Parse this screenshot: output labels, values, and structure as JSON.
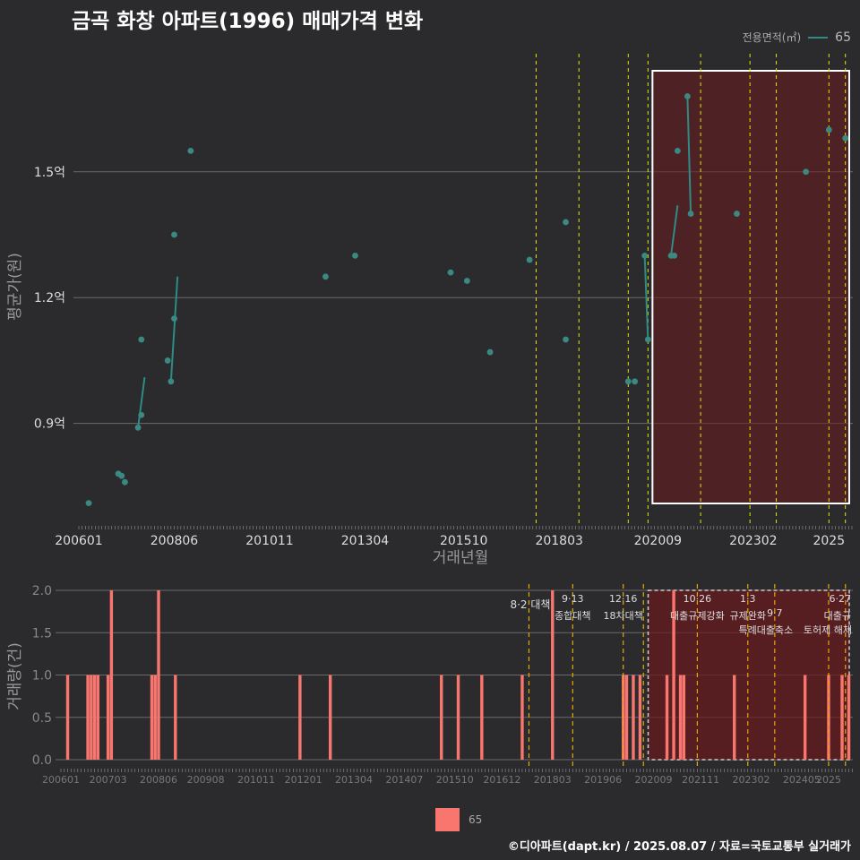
{
  "title": "금곡 화창 아파트(1996) 매매가격 변화",
  "legend": {
    "title": "전용면적(㎡)",
    "series_label": "65",
    "bar_label": "65"
  },
  "footer": "©디아파트(dapt.kr) / 2025.08.07 / 자료=국토교통부 실거래가",
  "colors": {
    "line": "#2e8b86",
    "point": "#3a8a83",
    "bar": "#f8766d",
    "vline_top": "#e6e600",
    "vline_bottom": "#e6a800",
    "shade": "#6b1a1e"
  },
  "chart_data": [
    {
      "type": "line",
      "title": "",
      "xlabel": "거래년월",
      "ylabel": "평균가(원)",
      "y_unit": "억",
      "ylim": [
        0.66,
        1.79
      ],
      "y_ticks": [
        0.9,
        1.2,
        1.5
      ],
      "y_tick_labels": [
        "0.9억",
        "1.2억",
        "1.5억"
      ],
      "x_ticks": [
        "200601",
        "200806",
        "201011",
        "201304",
        "201510",
        "201803",
        "202009",
        "202302",
        "2025"
      ],
      "x_range": [
        "2006-01",
        "2025-08"
      ],
      "points": [
        {
          "x": "2006-04",
          "y": 0.71
        },
        {
          "x": "2007-01",
          "y": 0.78
        },
        {
          "x": "2007-02",
          "y": 0.775
        },
        {
          "x": "2007-03",
          "y": 0.76
        },
        {
          "x": "2007-07",
          "y": 0.89
        },
        {
          "x": "2007-08",
          "y": 1.1
        },
        {
          "x": "2007-08",
          "y": 0.92
        },
        {
          "x": "2008-04",
          "y": 1.05
        },
        {
          "x": "2008-05",
          "y": 1.0
        },
        {
          "x": "2008-06",
          "y": 1.15
        },
        {
          "x": "2008-06",
          "y": 1.35
        },
        {
          "x": "2008-11",
          "y": 1.55
        },
        {
          "x": "2012-04",
          "y": 1.25
        },
        {
          "x": "2013-01",
          "y": 1.3
        },
        {
          "x": "2015-06",
          "y": 1.26
        },
        {
          "x": "2015-11",
          "y": 1.24
        },
        {
          "x": "2016-06",
          "y": 1.07
        },
        {
          "x": "2017-06",
          "y": 1.29
        },
        {
          "x": "2018-05",
          "y": 1.38
        },
        {
          "x": "2018-05",
          "y": 1.1
        },
        {
          "x": "2019-12",
          "y": 1.0
        },
        {
          "x": "2020-02",
          "y": 1.0
        },
        {
          "x": "2020-05",
          "y": 1.3
        },
        {
          "x": "2020-06",
          "y": 1.1
        },
        {
          "x": "2021-01",
          "y": 1.3
        },
        {
          "x": "2021-02",
          "y": 1.3
        },
        {
          "x": "2021-03",
          "y": 1.55
        },
        {
          "x": "2021-06",
          "y": 1.68
        },
        {
          "x": "2021-07",
          "y": 1.4
        },
        {
          "x": "2022-09",
          "y": 1.4
        },
        {
          "x": "2024-06",
          "y": 1.5
        },
        {
          "x": "2025-01",
          "y": 1.6
        },
        {
          "x": "2025-06",
          "y": 1.58
        }
      ],
      "line_segments": [
        [
          {
            "x": "2007-07",
            "y": 0.89
          },
          {
            "x": "2007-09",
            "y": 1.01
          }
        ],
        [
          {
            "x": "2008-05",
            "y": 1.0
          },
          {
            "x": "2008-07",
            "y": 1.25
          }
        ],
        [
          {
            "x": "2020-05",
            "y": 1.3
          },
          {
            "x": "2020-06",
            "y": 1.1
          }
        ],
        [
          {
            "x": "2021-01",
            "y": 1.3
          },
          {
            "x": "2021-03",
            "y": 1.42
          }
        ],
        [
          {
            "x": "2021-06",
            "y": 1.68
          },
          {
            "x": "2021-07",
            "y": 1.4
          }
        ]
      ],
      "policy_lines": [
        "2017-08",
        "2018-09",
        "2019-12",
        "2020-06",
        "2021-10",
        "2023-01",
        "2023-09",
        "2025-01",
        "2025-06"
      ],
      "highlight_range": [
        "2020-09",
        "2025-08"
      ]
    },
    {
      "type": "bar",
      "xlabel": "",
      "ylabel": "거래량(건)",
      "ylim": [
        -0.1,
        2.0
      ],
      "y_ticks": [
        0.0,
        0.5,
        1.0,
        1.5,
        2.0
      ],
      "y_tick_labels": [
        "0.0",
        "0.5",
        "1.0",
        "1.5",
        "2.0"
      ],
      "x_ticks": [
        "200601",
        "200703",
        "200806",
        "200908",
        "201011",
        "201201",
        "201304",
        "201407",
        "201510",
        "201612",
        "201803",
        "201906",
        "202009",
        "202111",
        "202302",
        "202405",
        "2025"
      ],
      "bars": [
        {
          "x": "2006-03",
          "v": 1
        },
        {
          "x": "2006-09",
          "v": 1
        },
        {
          "x": "2006-10",
          "v": 1
        },
        {
          "x": "2006-11",
          "v": 1
        },
        {
          "x": "2006-12",
          "v": 1
        },
        {
          "x": "2007-03",
          "v": 1
        },
        {
          "x": "2007-04",
          "v": 2
        },
        {
          "x": "2008-04",
          "v": 1
        },
        {
          "x": "2008-05",
          "v": 1
        },
        {
          "x": "2008-06",
          "v": 2
        },
        {
          "x": "2008-11",
          "v": 1
        },
        {
          "x": "2011-12",
          "v": 1
        },
        {
          "x": "2012-09",
          "v": 1
        },
        {
          "x": "2015-06",
          "v": 1
        },
        {
          "x": "2015-11",
          "v": 1
        },
        {
          "x": "2016-06",
          "v": 1
        },
        {
          "x": "2017-06",
          "v": 1
        },
        {
          "x": "2018-03",
          "v": 2
        },
        {
          "x": "2019-12",
          "v": 1
        },
        {
          "x": "2020-01",
          "v": 1
        },
        {
          "x": "2020-03",
          "v": 1
        },
        {
          "x": "2020-05",
          "v": 1
        },
        {
          "x": "2021-01",
          "v": 1
        },
        {
          "x": "2021-03",
          "v": 2
        },
        {
          "x": "2021-05",
          "v": 1
        },
        {
          "x": "2021-06",
          "v": 1
        },
        {
          "x": "2022-09",
          "v": 1
        },
        {
          "x": "2024-06",
          "v": 1
        },
        {
          "x": "2025-01",
          "v": 1
        },
        {
          "x": "2025-05",
          "v": 1
        },
        {
          "x": "2025-07",
          "v": 1
        }
      ],
      "policy_lines": [
        "2017-08",
        "2018-09",
        "2019-12",
        "2020-06",
        "2021-10",
        "2023-01",
        "2023-09",
        "2025-01",
        "2025-06"
      ],
      "highlight_range": [
        "2020-09",
        "2025-08"
      ],
      "annotations": [
        {
          "x": "2017-08",
          "line1": "8·2 대책",
          "line2": ""
        },
        {
          "x": "2018-09",
          "line1": "9·13",
          "line2": "종합대책"
        },
        {
          "x": "2019-12",
          "line1": "12·16",
          "line2": "18차대책"
        },
        {
          "x": "2021-10",
          "line1": "10·26",
          "line2": "대출규제강화"
        },
        {
          "x": "2023-01",
          "line1": "1·3",
          "line2": "규제완화"
        },
        {
          "x": "2023-09",
          "line1": "",
          "line2": "9·7"
        },
        {
          "x": "2023-09",
          "line1": "",
          "line2": "특례대출축소"
        },
        {
          "x": "2025-01",
          "line1": "",
          "line2": "토허제 해제"
        },
        {
          "x": "2025-06",
          "line1": "6·27",
          "line2": "대출규"
        }
      ]
    }
  ]
}
